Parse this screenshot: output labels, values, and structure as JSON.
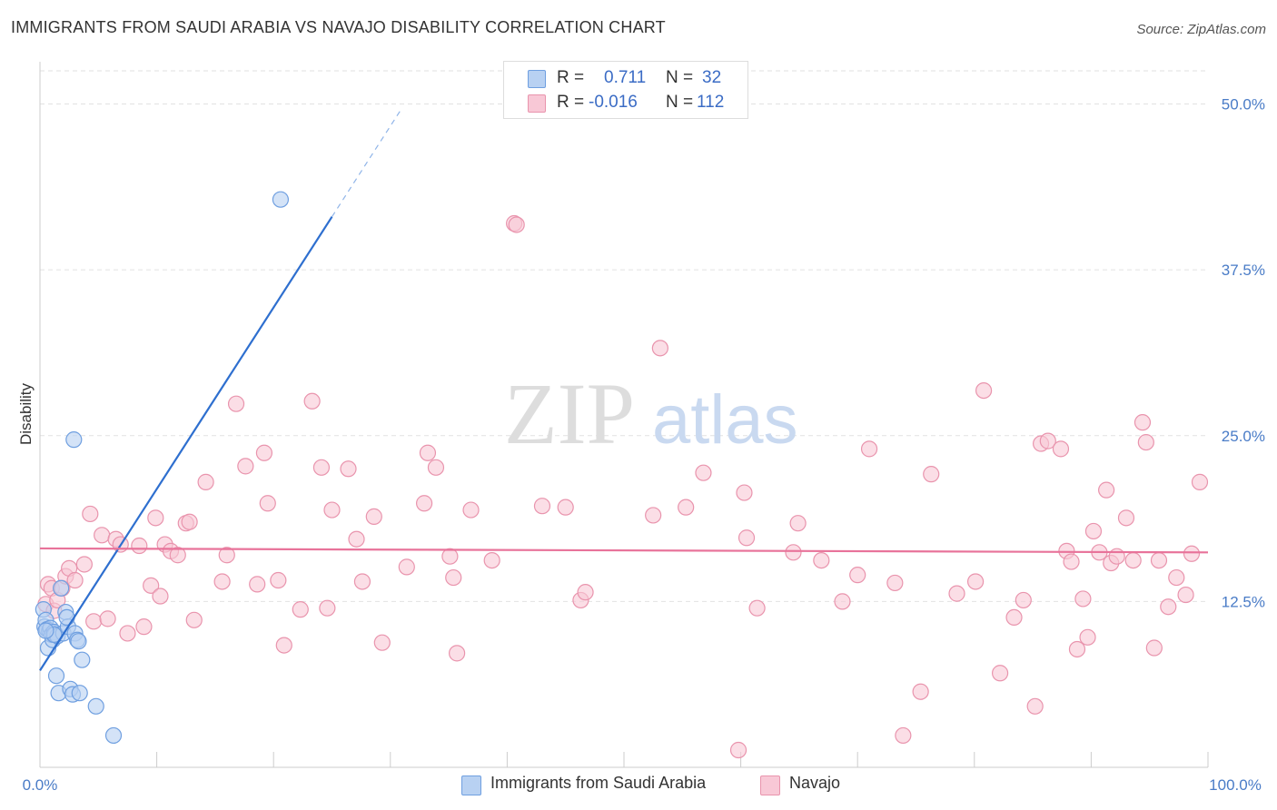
{
  "title": "IMMIGRANTS FROM SAUDI ARABIA VS NAVAJO DISABILITY CORRELATION CHART",
  "source": "Source: ZipAtlas.com",
  "watermark": {
    "zip": "ZIP",
    "atlas": "atlas"
  },
  "legend": {
    "r_label": "R =",
    "n_label": "N =",
    "series1": {
      "r": "0.711",
      "n": "32"
    },
    "series2": {
      "r": "-0.016",
      "n": "112"
    }
  },
  "bottom_legend": {
    "series1": "Immigrants from Saudi Arabia",
    "series2": "Navajo"
  },
  "colors": {
    "blue_fill": "#b8d1f2",
    "blue_stroke": "#6f9fe0",
    "blue_line": "#2e6fcf",
    "pink_fill": "#f8c8d6",
    "pink_stroke": "#e994ad",
    "pink_line": "#e8739a",
    "grid": "#e2e2e2",
    "tick_text": "#4a7cc7"
  },
  "chart_data": {
    "type": "scatter",
    "title": "IMMIGRANTS FROM SAUDI ARABIA VS NAVAJO DISABILITY CORRELATION CHART",
    "xlabel": "",
    "ylabel": "Disability",
    "xlim": [
      0,
      100
    ],
    "ylim": [
      0,
      52.5
    ],
    "x_tick_labels": [
      "0.0%",
      "100.0%"
    ],
    "y_ticks": [
      12.5,
      25.0,
      37.5,
      50.0
    ],
    "y_tick_labels": [
      "12.5%",
      "25.0%",
      "37.5%",
      "50.0%"
    ],
    "grid": true,
    "legend_position": "top-center",
    "series": [
      {
        "name": "Immigrants from Saudi Arabia",
        "r": 0.711,
        "n": 32,
        "trend": {
          "x1": 0,
          "y1": 7.3,
          "x2": 25,
          "y2": 41.5,
          "dash_to_x": 31,
          "dash_to_y": 49.7
        },
        "points": [
          [
            0.3,
            11.9
          ],
          [
            0.4,
            10.6
          ],
          [
            0.5,
            11.1
          ],
          [
            0.6,
            10.4
          ],
          [
            0.7,
            9.0
          ],
          [
            0.8,
            10.3
          ],
          [
            0.9,
            10.5
          ],
          [
            1.0,
            10.0
          ],
          [
            1.1,
            9.6
          ],
          [
            1.2,
            10.2
          ],
          [
            1.3,
            10.0
          ],
          [
            1.4,
            6.9
          ],
          [
            1.5,
            9.9
          ],
          [
            1.6,
            5.6
          ],
          [
            1.8,
            13.5
          ],
          [
            2.0,
            10.1
          ],
          [
            2.2,
            11.7
          ],
          [
            2.4,
            10.6
          ],
          [
            2.6,
            5.9
          ],
          [
            2.8,
            5.5
          ],
          [
            3.0,
            10.1
          ],
          [
            3.2,
            9.6
          ],
          [
            3.3,
            9.5
          ],
          [
            3.4,
            5.6
          ],
          [
            3.6,
            8.1
          ],
          [
            2.9,
            24.7
          ],
          [
            4.8,
            4.6
          ],
          [
            6.3,
            2.4
          ],
          [
            20.6,
            42.8
          ],
          [
            1.2,
            10.0
          ],
          [
            0.5,
            10.3
          ],
          [
            2.3,
            11.3
          ]
        ]
      },
      {
        "name": "Navajo",
        "r": -0.016,
        "n": 112,
        "trend": {
          "x1": 0,
          "y1": 16.5,
          "x2": 100,
          "y2": 16.2
        },
        "points": [
          [
            0.5,
            12.3
          ],
          [
            0.7,
            13.8
          ],
          [
            1.0,
            13.5
          ],
          [
            1.2,
            11.8
          ],
          [
            1.5,
            12.6
          ],
          [
            1.9,
            13.5
          ],
          [
            2.2,
            14.4
          ],
          [
            2.5,
            15.0
          ],
          [
            3.0,
            14.1
          ],
          [
            3.8,
            15.3
          ],
          [
            4.3,
            19.1
          ],
          [
            4.6,
            11.0
          ],
          [
            5.3,
            17.5
          ],
          [
            5.8,
            11.2
          ],
          [
            6.5,
            17.2
          ],
          [
            6.9,
            16.8
          ],
          [
            7.5,
            10.1
          ],
          [
            8.5,
            16.7
          ],
          [
            8.9,
            10.6
          ],
          [
            9.5,
            13.7
          ],
          [
            9.9,
            18.8
          ],
          [
            10.3,
            12.9
          ],
          [
            10.7,
            16.8
          ],
          [
            11.2,
            16.3
          ],
          [
            11.8,
            16.0
          ],
          [
            12.5,
            18.4
          ],
          [
            12.8,
            18.5
          ],
          [
            13.2,
            11.1
          ],
          [
            14.2,
            21.5
          ],
          [
            15.6,
            14.0
          ],
          [
            16.0,
            16.0
          ],
          [
            16.8,
            27.4
          ],
          [
            17.6,
            22.7
          ],
          [
            18.6,
            13.8
          ],
          [
            19.2,
            23.7
          ],
          [
            19.5,
            19.9
          ],
          [
            20.4,
            14.1
          ],
          [
            20.9,
            9.2
          ],
          [
            22.3,
            11.9
          ],
          [
            23.3,
            27.6
          ],
          [
            24.1,
            22.6
          ],
          [
            24.6,
            12.0
          ],
          [
            25.0,
            19.4
          ],
          [
            26.4,
            22.5
          ],
          [
            27.1,
            17.2
          ],
          [
            27.6,
            14.0
          ],
          [
            28.6,
            18.9
          ],
          [
            29.3,
            9.4
          ],
          [
            31.4,
            15.1
          ],
          [
            32.9,
            19.9
          ],
          [
            33.2,
            23.7
          ],
          [
            33.9,
            22.6
          ],
          [
            35.1,
            15.9
          ],
          [
            35.4,
            14.3
          ],
          [
            35.7,
            8.6
          ],
          [
            36.9,
            19.4
          ],
          [
            38.7,
            15.6
          ],
          [
            40.6,
            41.0
          ],
          [
            40.8,
            40.9
          ],
          [
            43.0,
            19.7
          ],
          [
            45.0,
            19.6
          ],
          [
            46.3,
            12.6
          ],
          [
            46.7,
            13.2
          ],
          [
            52.5,
            19.0
          ],
          [
            53.1,
            31.6
          ],
          [
            55.3,
            19.6
          ],
          [
            56.8,
            22.2
          ],
          [
            59.8,
            1.3
          ],
          [
            60.3,
            20.7
          ],
          [
            60.5,
            17.3
          ],
          [
            61.4,
            12.0
          ],
          [
            64.5,
            16.2
          ],
          [
            64.9,
            18.4
          ],
          [
            66.9,
            15.6
          ],
          [
            68.7,
            12.5
          ],
          [
            70.0,
            14.5
          ],
          [
            71.0,
            24.0
          ],
          [
            73.2,
            13.9
          ],
          [
            73.9,
            2.4
          ],
          [
            75.4,
            5.7
          ],
          [
            76.3,
            22.1
          ],
          [
            78.5,
            13.1
          ],
          [
            80.1,
            14.0
          ],
          [
            80.8,
            28.4
          ],
          [
            82.2,
            7.1
          ],
          [
            83.4,
            11.3
          ],
          [
            84.2,
            12.6
          ],
          [
            85.2,
            4.6
          ],
          [
            85.7,
            24.4
          ],
          [
            86.3,
            24.6
          ],
          [
            87.4,
            24.0
          ],
          [
            87.9,
            16.3
          ],
          [
            88.3,
            15.5
          ],
          [
            88.8,
            8.9
          ],
          [
            89.3,
            12.7
          ],
          [
            89.7,
            9.8
          ],
          [
            90.2,
            17.8
          ],
          [
            90.7,
            16.2
          ],
          [
            91.3,
            20.9
          ],
          [
            91.7,
            15.4
          ],
          [
            92.2,
            15.9
          ],
          [
            93.0,
            18.8
          ],
          [
            93.6,
            15.6
          ],
          [
            94.4,
            26.0
          ],
          [
            94.7,
            24.5
          ],
          [
            95.4,
            9.0
          ],
          [
            95.8,
            15.6
          ],
          [
            96.6,
            12.1
          ],
          [
            97.3,
            14.3
          ],
          [
            98.1,
            13.0
          ],
          [
            98.6,
            16.1
          ],
          [
            99.3,
            21.5
          ]
        ]
      }
    ]
  }
}
